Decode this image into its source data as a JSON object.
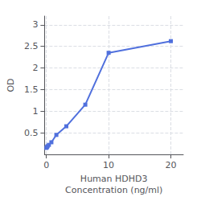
{
  "chart_data": {
    "type": "line",
    "x": [
      0.0,
      0.1,
      0.2,
      0.4,
      0.8,
      1.6,
      3.2,
      6.25,
      10.0,
      20.0
    ],
    "values": [
      0.15,
      0.17,
      0.19,
      0.22,
      0.28,
      0.45,
      0.65,
      1.15,
      2.35,
      2.62
    ],
    "xlabel": "Human HDHD3\nConcentration (ng/ml)",
    "ylabel": "OD",
    "xlim": [
      -0.3,
      22
    ],
    "xticks": [
      0,
      10,
      20
    ],
    "ylim": [
      0.0,
      3.2
    ],
    "yticks": [
      0.5,
      1,
      1.5,
      2,
      2.5,
      3
    ],
    "grid": true,
    "marker": "square"
  }
}
